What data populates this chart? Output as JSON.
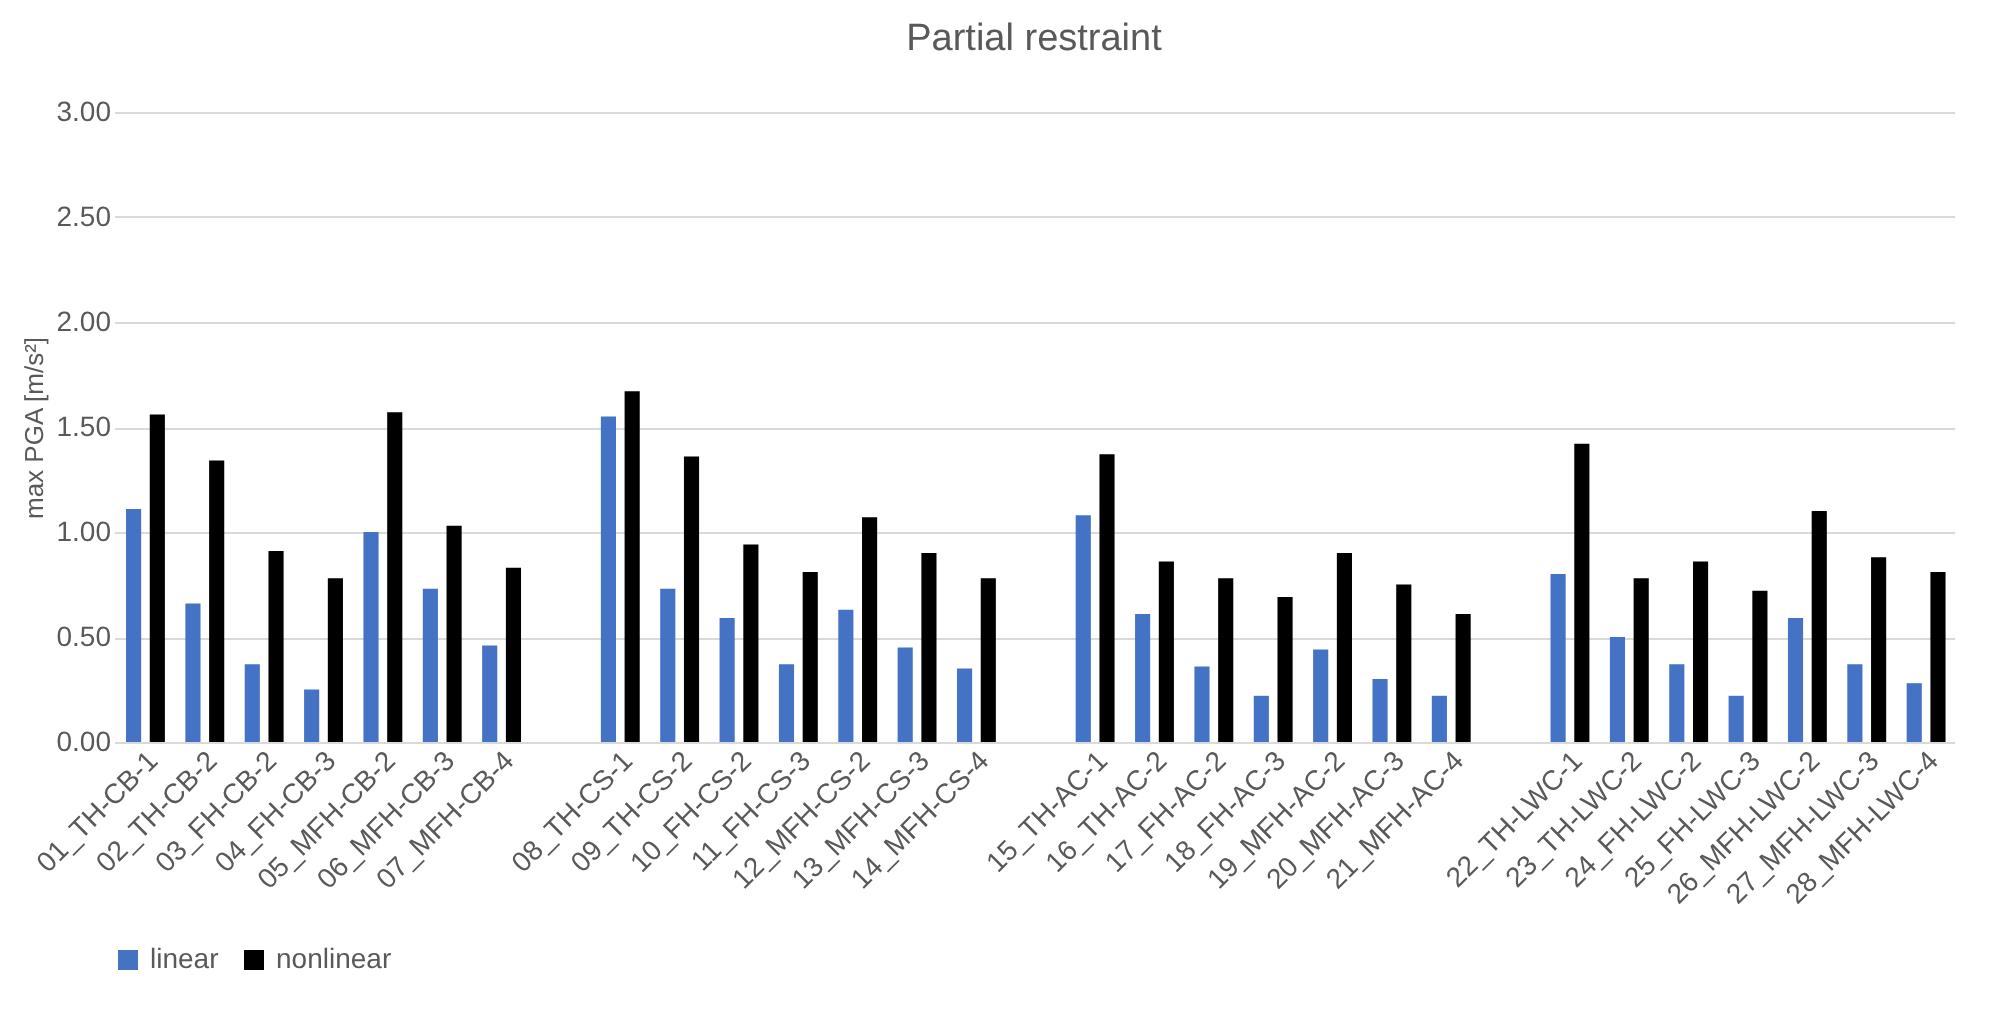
{
  "chart_data": {
    "type": "bar",
    "title": "Partial restraint",
    "ylabel": "max PGA [m/s²]",
    "categories": [
      "01_TH-CB-1",
      "02_TH-CB-2",
      "03_FH-CB-2",
      "04_FH-CB-3",
      "05_MFH-CB-2",
      "06_MFH-CB-3",
      "07_MFH-CB-4",
      null,
      "08_TH-CS-1",
      "09_TH-CS-2",
      "10_FH-CS-2",
      "11_FH-CS-3",
      "12_MFH-CS-2",
      "13_MFH-CS-3",
      "14_MFH-CS-4",
      null,
      "15_TH-AC-1",
      "16_TH-AC-2",
      "17_FH-AC-2",
      "18_FH-AC-3",
      "19_MFH-AC-2",
      "20_MFH-AC-3",
      "21_MFH-AC-4",
      null,
      "22_TH-LWC-1",
      "23_TH-LWC-2",
      "24_FH-LWC-2",
      "25_FH-LWC-3",
      "26_MFH-LWC-2",
      "27_MFH-LWC-3",
      "28_MFH-LWC-4"
    ],
    "series": [
      {
        "name": "linear",
        "color": "#4472c4",
        "values": [
          1.11,
          0.66,
          0.37,
          0.25,
          1.0,
          0.73,
          0.46,
          null,
          1.55,
          0.73,
          0.59,
          0.37,
          0.63,
          0.45,
          0.35,
          null,
          1.08,
          0.61,
          0.36,
          0.22,
          0.44,
          0.3,
          0.22,
          null,
          0.8,
          0.5,
          0.37,
          0.22,
          0.59,
          0.37,
          0.28
        ]
      },
      {
        "name": "nonlinear",
        "color": "#000000",
        "values": [
          1.56,
          1.34,
          0.91,
          0.78,
          1.57,
          1.03,
          0.83,
          null,
          1.67,
          1.36,
          0.94,
          0.81,
          1.07,
          0.9,
          0.78,
          null,
          1.37,
          0.86,
          0.78,
          0.69,
          0.9,
          0.75,
          0.61,
          null,
          1.42,
          0.78,
          0.86,
          0.72,
          1.1,
          0.88,
          0.81
        ]
      }
    ],
    "ylim": [
      0,
      3
    ],
    "yticks": [
      {
        "value": 0,
        "label": "0.00"
      },
      {
        "value": 0.5,
        "label": "0.50"
      },
      {
        "value": 1,
        "label": "1.00"
      },
      {
        "value": 1.5,
        "label": "1.50"
      },
      {
        "value": 2,
        "label": "2.00"
      },
      {
        "value": 2.5,
        "label": "2.50"
      },
      {
        "value": 3,
        "label": "3.00"
      }
    ],
    "grid": "y",
    "legend": "bottom"
  }
}
